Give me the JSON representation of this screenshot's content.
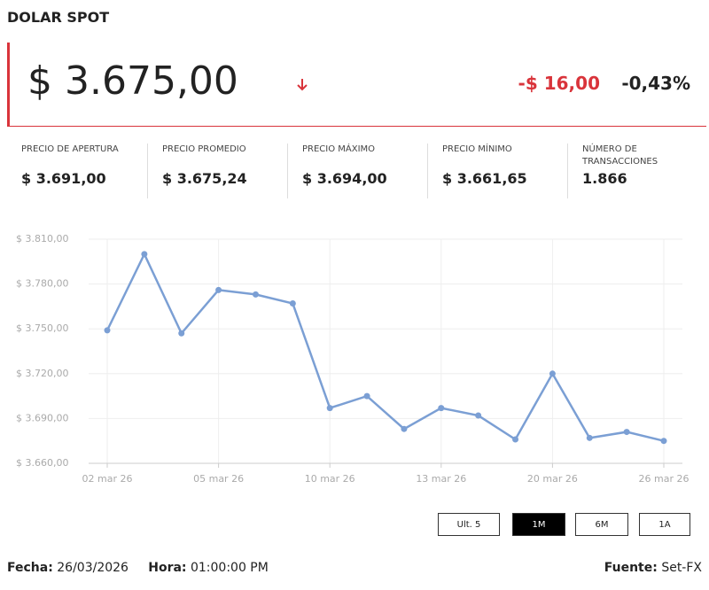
{
  "header": {
    "title": "DOLAR SPOT",
    "price": "$ 3.675,00",
    "change": "-$ 16,00",
    "change_pct": "-0,43%"
  },
  "stats": [
    {
      "label": "PRECIO DE APERTURA",
      "value": "$ 3.691,00"
    },
    {
      "label": "PRECIO PROMEDIO",
      "value": "$ 3.675,24"
    },
    {
      "label": "PRECIO MÁXIMO",
      "value": "$ 3.694,00"
    },
    {
      "label": "PRECIO MÍNIMO",
      "value": "$ 3.661,65"
    },
    {
      "label": "NÚMERO DE TRANSACCIONES",
      "value": "1.866"
    }
  ],
  "chart_data": {
    "type": "line",
    "categories": [
      "02 mar 26",
      null,
      null,
      "05 mar 26",
      null,
      null,
      "10 mar 26",
      null,
      null,
      "13 mar 26",
      null,
      null,
      "20 mar 26",
      null,
      null,
      "26 mar 26"
    ],
    "series": [
      {
        "name": "Dolar spot",
        "color": "#7b9fd4",
        "values": [
          3749,
          3800,
          3747,
          3776,
          3773,
          3767,
          3697,
          3705,
          3683,
          3697,
          3692,
          3676,
          3720,
          3677,
          3681,
          3675
        ]
      }
    ],
    "ylim": [
      3660,
      3810
    ],
    "yticks": [
      {
        "value": 3660,
        "label": "$ 3.660,00"
      },
      {
        "value": 3690,
        "label": "$ 3.690,00"
      },
      {
        "value": 3720,
        "label": "$ 3.720,00"
      },
      {
        "value": 3750,
        "label": "$ 3.750,00"
      },
      {
        "value": 3780,
        "label": "$ 3.780,00"
      },
      {
        "value": 3810,
        "label": "$ 3.810,00"
      }
    ],
    "grid": true
  },
  "buttons": [
    {
      "label": "Ult. 5",
      "active": false
    },
    {
      "label": "1M",
      "active": true
    },
    {
      "label": "6M",
      "active": false
    },
    {
      "label": "1A",
      "active": false
    }
  ],
  "footer": {
    "date_label": "Fecha:",
    "date": "26/03/2026",
    "time_label": "Hora:",
    "time": "01:00:00 PM",
    "source_label": "Fuente:",
    "source": "Set-FX"
  }
}
